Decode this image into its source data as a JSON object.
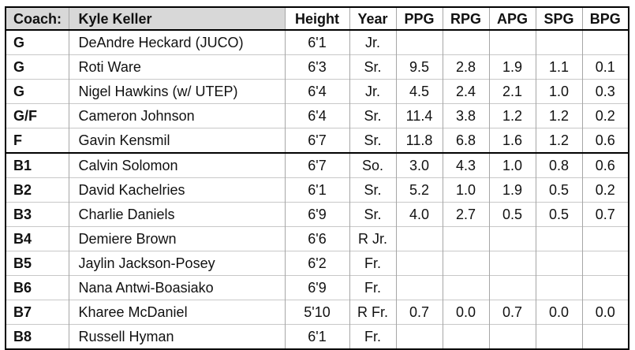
{
  "chart_data": {
    "type": "table",
    "title": "Coach: Kyle Keller",
    "columns": [
      "Coach:",
      "Kyle Keller",
      "Height",
      "Year",
      "PPG",
      "RPG",
      "APG",
      "SPG",
      "BPG"
    ],
    "rows": [
      [
        "G",
        "DeAndre Heckard (JUCO)",
        "6'1",
        "Jr.",
        "",
        "",
        "",
        "",
        ""
      ],
      [
        "G",
        "Roti Ware",
        "6'3",
        "Sr.",
        "9.5",
        "2.8",
        "1.9",
        "1.1",
        "0.1"
      ],
      [
        "G",
        "Nigel Hawkins (w/ UTEP)",
        "6'4",
        "Jr.",
        "4.5",
        "2.4",
        "2.1",
        "1.0",
        "0.3"
      ],
      [
        "G/F",
        "Cameron Johnson",
        "6'4",
        "Sr.",
        "11.4",
        "3.8",
        "1.2",
        "1.2",
        "0.2"
      ],
      [
        "F",
        "Gavin Kensmil",
        "6'7",
        "Sr.",
        "11.8",
        "6.8",
        "1.6",
        "1.2",
        "0.6"
      ],
      [
        "B1",
        "Calvin Solomon",
        "6'7",
        "So.",
        "3.0",
        "4.3",
        "1.0",
        "0.8",
        "0.6"
      ],
      [
        "B2",
        "David Kachelries",
        "6'1",
        "Sr.",
        "5.2",
        "1.0",
        "1.9",
        "0.5",
        "0.2"
      ],
      [
        "B3",
        "Charlie Daniels",
        "6'9",
        "Sr.",
        "4.0",
        "2.7",
        "0.5",
        "0.5",
        "0.7"
      ],
      [
        "B4",
        "Demiere Brown",
        "6'6",
        "R Jr.",
        "",
        "",
        "",
        "",
        ""
      ],
      [
        "B5",
        "Jaylin Jackson-Posey",
        "6'2",
        "Fr.",
        "",
        "",
        "",
        "",
        ""
      ],
      [
        "B6",
        "Nana Antwi-Boasiako",
        "6'9",
        "Fr.",
        "",
        "",
        "",
        "",
        ""
      ],
      [
        "B7",
        "Kharee McDaniel",
        "5'10",
        "R Fr.",
        "0.7",
        "0.0",
        "0.7",
        "0.0",
        "0.0"
      ],
      [
        "B8",
        "Russell Hyman",
        "6'1",
        "Fr.",
        "",
        "",
        "",
        "",
        ""
      ]
    ]
  },
  "header": {
    "coach_label": "Coach:",
    "coach_name": "Kyle Keller",
    "stat_columns": [
      "Height",
      "Year",
      "PPG",
      "RPG",
      "APG",
      "SPG",
      "BPG"
    ]
  },
  "players": [
    {
      "pos": "G",
      "name": "DeAndre Heckard (JUCO)",
      "height": "6'1",
      "year": "Jr.",
      "stats": [
        "",
        "",
        "",
        "",
        ""
      ],
      "group": "starters"
    },
    {
      "pos": "G",
      "name": "Roti Ware",
      "height": "6'3",
      "year": "Sr.",
      "stats": [
        "9.5",
        "2.8",
        "1.9",
        "1.1",
        "0.1"
      ],
      "group": "starters"
    },
    {
      "pos": "G",
      "name": "Nigel Hawkins (w/ UTEP)",
      "height": "6'4",
      "year": "Jr.",
      "stats": [
        "4.5",
        "2.4",
        "2.1",
        "1.0",
        "0.3"
      ],
      "group": "starters"
    },
    {
      "pos": "G/F",
      "name": "Cameron Johnson",
      "height": "6'4",
      "year": "Sr.",
      "stats": [
        "11.4",
        "3.8",
        "1.2",
        "1.2",
        "0.2"
      ],
      "group": "starters"
    },
    {
      "pos": "F",
      "name": "Gavin Kensmil",
      "height": "6'7",
      "year": "Sr.",
      "stats": [
        "11.8",
        "6.8",
        "1.6",
        "1.2",
        "0.6"
      ],
      "group": "starters"
    },
    {
      "pos": "B1",
      "name": "Calvin Solomon",
      "height": "6'7",
      "year": "So.",
      "stats": [
        "3.0",
        "4.3",
        "1.0",
        "0.8",
        "0.6"
      ],
      "group": "bench"
    },
    {
      "pos": "B2",
      "name": "David Kachelries",
      "height": "6'1",
      "year": "Sr.",
      "stats": [
        "5.2",
        "1.0",
        "1.9",
        "0.5",
        "0.2"
      ],
      "group": "bench"
    },
    {
      "pos": "B3",
      "name": "Charlie Daniels",
      "height": "6'9",
      "year": "Sr.",
      "stats": [
        "4.0",
        "2.7",
        "0.5",
        "0.5",
        "0.7"
      ],
      "group": "bench"
    },
    {
      "pos": "B4",
      "name": "Demiere Brown",
      "height": "6'6",
      "year": "R Jr.",
      "stats": [
        "",
        "",
        "",
        "",
        ""
      ],
      "group": "bench"
    },
    {
      "pos": "B5",
      "name": "Jaylin Jackson-Posey",
      "height": "6'2",
      "year": "Fr.",
      "stats": [
        "",
        "",
        "",
        "",
        ""
      ],
      "group": "bench"
    },
    {
      "pos": "B6",
      "name": "Nana Antwi-Boasiako",
      "height": "6'9",
      "year": "Fr.",
      "stats": [
        "",
        "",
        "",
        "",
        ""
      ],
      "group": "bench"
    },
    {
      "pos": "B7",
      "name": "Kharee McDaniel",
      "height": "5'10",
      "year": "R Fr.",
      "stats": [
        "0.7",
        "0.0",
        "0.7",
        "0.0",
        "0.0"
      ],
      "group": "bench"
    },
    {
      "pos": "B8",
      "name": "Russell Hyman",
      "height": "6'1",
      "year": "Fr.",
      "stats": [
        "",
        "",
        "",
        "",
        ""
      ],
      "group": "bench"
    }
  ],
  "colors": {
    "header_fill": "#d8d8d8",
    "strong_border": "#000000",
    "grid_vertical": "#a6a6a6",
    "grid_horizontal": "#c8c8c8",
    "background": "#ffffff",
    "text": "#111111"
  }
}
